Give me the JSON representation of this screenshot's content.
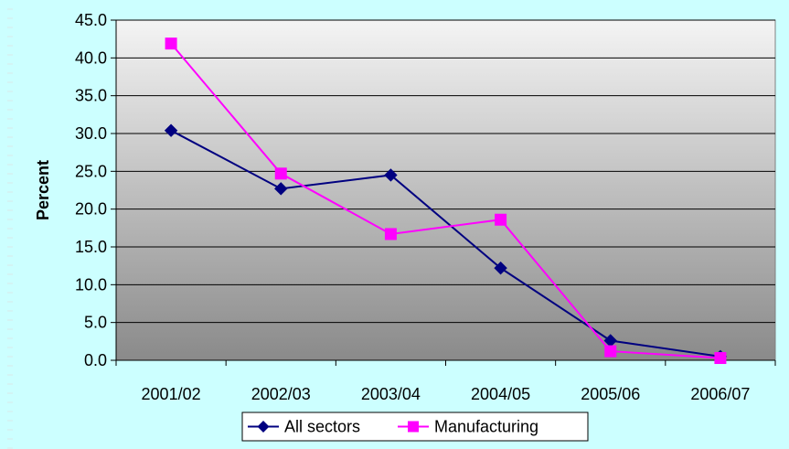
{
  "colors": {
    "frame_bg": "#ccffff",
    "plot_top": "#f4f4f4",
    "plot_bottom": "#8a8a8a",
    "all_sectors": "#000080",
    "manufacturing": "#ff00ff"
  },
  "chart_data": {
    "type": "line",
    "title": "",
    "xlabel": "",
    "ylabel": "Percent",
    "categories": [
      "2001/02",
      "2002/03",
      "2003/04",
      "2004/05",
      "2005/06",
      "2006/07"
    ],
    "ylim": [
      0,
      45
    ],
    "yticks": [
      "0.0",
      "5.0",
      "10.0",
      "15.0",
      "20.0",
      "25.0",
      "30.0",
      "35.0",
      "40.0",
      "45.0"
    ],
    "grid": true,
    "legend_position": "bottom",
    "series": [
      {
        "name": "All sectors",
        "marker": "diamond",
        "values": [
          30.4,
          22.7,
          24.5,
          12.2,
          2.6,
          0.5
        ]
      },
      {
        "name": "Manufacturing",
        "marker": "square",
        "values": [
          41.9,
          24.7,
          16.7,
          18.6,
          1.2,
          0.3
        ]
      }
    ]
  }
}
